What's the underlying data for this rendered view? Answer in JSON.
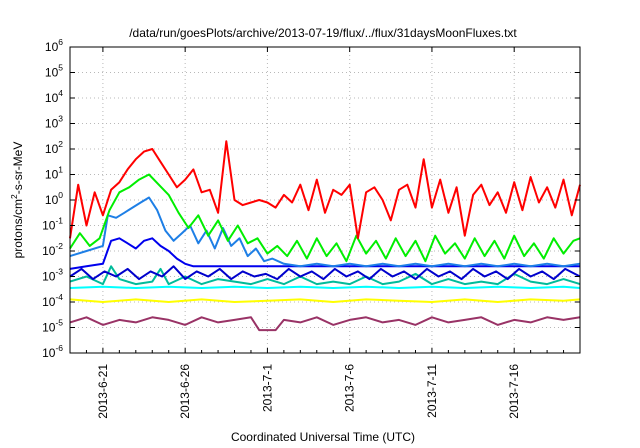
{
  "chart_data": {
    "type": "line",
    "title": "/data/run/goesPlots/archive/2013-07-19/flux/../flux/31daysMoonFluxes.txt",
    "xlabel": "Coordinated Universal Time (UTC)",
    "ylabel": {
      "base": "protons/cm",
      "sup": "2",
      "rest": "-s-sr-MeV"
    },
    "yscale": "log",
    "ylim": [
      -6,
      6
    ],
    "y_ticks": [
      {
        "base": "10",
        "exp": "-6",
        "v": -6
      },
      {
        "base": "10",
        "exp": "-5",
        "v": -5
      },
      {
        "base": "10",
        "exp": "-4",
        "v": -4
      },
      {
        "base": "10",
        "exp": "-3",
        "v": -3
      },
      {
        "base": "10",
        "exp": "-2",
        "v": -2
      },
      {
        "base": "10",
        "exp": "-1",
        "v": -1
      },
      {
        "base": "10",
        "exp": "0",
        "v": 0
      },
      {
        "base": "10",
        "exp": "1",
        "v": 1
      },
      {
        "base": "10",
        "exp": "2",
        "v": 2
      },
      {
        "base": "10",
        "exp": "3",
        "v": 3
      },
      {
        "base": "10",
        "exp": "4",
        "v": 4
      },
      {
        "base": "10",
        "exp": "5",
        "v": 5
      },
      {
        "base": "10",
        "exp": "6",
        "v": 6
      }
    ],
    "x_ticks": [
      "2013-6-21",
      "2013-6-26",
      "2013-7-1",
      "2013-7-6",
      "2013-7-11",
      "2013-7-16"
    ],
    "x_tick_days": [
      2,
      7,
      12,
      17,
      22,
      27
    ],
    "xlim_days": [
      0,
      31
    ],
    "grid": true,
    "series": [
      {
        "color": "#993366",
        "x": [
          0,
          1,
          2,
          3,
          4,
          5,
          6,
          7,
          8,
          9,
          10,
          11,
          11.5,
          12.5,
          13,
          14,
          15,
          16,
          17,
          18,
          19,
          20,
          21,
          22,
          23,
          24,
          25,
          26,
          27,
          28,
          29,
          30,
          31
        ],
        "y": [
          -4.8,
          -4.6,
          -4.9,
          -4.7,
          -4.8,
          -4.6,
          -4.7,
          -4.9,
          -4.6,
          -4.8,
          -4.7,
          -4.6,
          -5.1,
          -5.1,
          -4.7,
          -4.8,
          -4.6,
          -4.9,
          -4.7,
          -4.6,
          -4.8,
          -4.7,
          -4.9,
          -4.6,
          -4.8,
          -4.7,
          -4.6,
          -4.9,
          -4.7,
          -4.8,
          -4.6,
          -4.7,
          -4.6
        ]
      },
      {
        "color": "#ffff00",
        "x": [
          0,
          2,
          4,
          6,
          8,
          10,
          12,
          14,
          16,
          18,
          20,
          22,
          24,
          26,
          28,
          30,
          31
        ],
        "y": [
          -3.9,
          -4.0,
          -3.9,
          -4.0,
          -3.9,
          -4.0,
          -3.95,
          -3.9,
          -4.0,
          -3.9,
          -3.95,
          -4.0,
          -3.9,
          -4.0,
          -3.9,
          -3.95,
          -3.9
        ]
      },
      {
        "color": "#00ffff",
        "x": [
          0,
          2,
          4,
          6,
          8,
          10,
          12,
          14,
          16,
          18,
          20,
          22,
          24,
          26,
          28,
          30,
          31
        ],
        "y": [
          -3.45,
          -3.4,
          -3.45,
          -3.4,
          -3.45,
          -3.4,
          -3.45,
          -3.4,
          -3.45,
          -3.4,
          -3.45,
          -3.4,
          -3.45,
          -3.4,
          -3.45,
          -3.4,
          -3.45
        ]
      },
      {
        "color": "#00bb99",
        "x": [
          0,
          1,
          2,
          2.5,
          3,
          4,
          5,
          5.5,
          6,
          7,
          8,
          9,
          10,
          11,
          12,
          13,
          14,
          15,
          16,
          17,
          18,
          19,
          20,
          21,
          22,
          23,
          24,
          25,
          26,
          27,
          28,
          29,
          30,
          31
        ],
        "y": [
          -3.2,
          -3.0,
          -3.3,
          -2.6,
          -3.1,
          -3.3,
          -3.2,
          -2.7,
          -3.3,
          -3.0,
          -3.3,
          -3.1,
          -3.2,
          -3.3,
          -3.1,
          -3.3,
          -3.0,
          -3.3,
          -3.2,
          -3.3,
          -3.0,
          -3.3,
          -3.2,
          -2.9,
          -3.3,
          -3.1,
          -3.3,
          -3.2,
          -3.3,
          -2.9,
          -3.2,
          -3.3,
          -3.1,
          -3.3
        ]
      },
      {
        "color": "#0000cc",
        "x": [
          0,
          0.7,
          1.4,
          2.1,
          2.8,
          3.5,
          4.2,
          4.9,
          5.6,
          6.3,
          7,
          7.7,
          8.4,
          9.1,
          9.8,
          10.5,
          11.2,
          11.9,
          12.6,
          13.3,
          14,
          14.7,
          15.4,
          16.1,
          16.8,
          17.5,
          18.2,
          18.9,
          19.6,
          20.3,
          21,
          21.7,
          22.4,
          23.1,
          23.8,
          24.5,
          25.2,
          25.9,
          26.6,
          27.3,
          28,
          28.7,
          29.4,
          30.1,
          31
        ],
        "y": [
          -3.0,
          -2.7,
          -3.1,
          -2.8,
          -3.0,
          -2.7,
          -3.1,
          -2.8,
          -3.0,
          -2.6,
          -3.1,
          -2.8,
          -3.0,
          -2.7,
          -3.1,
          -2.8,
          -3.0,
          -2.9,
          -3.1,
          -2.7,
          -3.0,
          -2.8,
          -3.1,
          -2.7,
          -3.0,
          -2.8,
          -3.1,
          -2.7,
          -3.0,
          -2.8,
          -3.1,
          -2.7,
          -3.0,
          -2.8,
          -3.1,
          -2.7,
          -3.0,
          -2.8,
          -3.1,
          -2.7,
          -3.0,
          -2.8,
          -3.1,
          -2.7,
          -3.0
        ]
      },
      {
        "color": "#0000ee",
        "x": [
          0,
          1,
          2,
          2.5,
          3,
          3.5,
          4,
          4.5,
          5,
          5.5,
          6,
          6.5,
          7,
          7.5,
          8,
          9,
          10,
          11,
          12,
          13,
          14,
          15,
          16,
          17,
          18,
          19,
          20,
          21,
          22,
          23,
          24,
          25,
          26,
          27,
          28,
          29,
          30,
          31
        ],
        "y": [
          -2.7,
          -2.6,
          -2.5,
          -1.6,
          -1.5,
          -1.7,
          -1.9,
          -1.6,
          -1.5,
          -1.8,
          -2.0,
          -2.3,
          -2.5,
          -2.6,
          -2.6,
          -2.6,
          -2.6,
          -2.6,
          -2.6,
          -2.6,
          -2.6,
          -2.6,
          -2.6,
          -2.6,
          -2.6,
          -2.6,
          -2.6,
          -2.6,
          -2.6,
          -2.6,
          -2.6,
          -2.6,
          -2.6,
          -2.6,
          -2.6,
          -2.6,
          -2.6,
          -2.6
        ]
      },
      {
        "color": "#1e7fe6",
        "x": [
          0,
          1,
          2,
          2.3,
          2.8,
          3.3,
          3.8,
          4.3,
          4.8,
          5.3,
          5.8,
          6.3,
          6.8,
          7.3,
          7.8,
          8.3,
          8.8,
          9.3,
          9.8,
          10.3,
          10.8,
          11.3,
          11.8,
          12.3,
          13,
          14,
          15,
          16,
          17,
          18,
          19,
          20,
          21,
          22,
          23,
          24,
          25,
          26,
          27,
          28,
          29,
          30,
          31
        ],
        "y": [
          -2.2,
          -2.0,
          -1.8,
          -0.6,
          -0.7,
          -0.5,
          -0.3,
          -0.1,
          0.1,
          -0.4,
          -1.2,
          -1.6,
          -1.3,
          -1.0,
          -1.7,
          -1.2,
          -1.9,
          -1.1,
          -1.8,
          -1.5,
          -2.2,
          -1.9,
          -2.4,
          -2.3,
          -2.5,
          -2.6,
          -2.5,
          -2.6,
          -2.5,
          -2.6,
          -2.5,
          -2.6,
          -2.5,
          -2.6,
          -2.5,
          -2.6,
          -2.5,
          -2.6,
          -2.5,
          -2.6,
          -2.5,
          -2.6,
          -2.5
        ]
      },
      {
        "color": "#00ee00",
        "x": [
          0,
          0.6,
          1.2,
          1.8,
          2.4,
          3,
          3.6,
          4.2,
          4.8,
          5.4,
          6,
          6.6,
          7.2,
          7.8,
          8.4,
          9,
          9.6,
          10.2,
          10.8,
          11.4,
          12,
          12.6,
          13.2,
          13.8,
          14.4,
          15,
          15.6,
          16.2,
          16.8,
          17.4,
          18,
          18.6,
          19.2,
          19.8,
          20.4,
          21,
          21.6,
          22.2,
          22.8,
          23.4,
          24,
          24.6,
          25.2,
          25.8,
          26.4,
          27,
          27.6,
          28.2,
          28.8,
          29.4,
          30,
          30.6,
          31
        ],
        "y": [
          -1.9,
          -1.3,
          -1.8,
          -1.5,
          -0.4,
          0.3,
          0.5,
          0.8,
          1.0,
          0.6,
          0.2,
          -0.5,
          -1.1,
          -0.6,
          -1.4,
          -0.8,
          -1.6,
          -1.0,
          -1.7,
          -1.5,
          -2.1,
          -1.8,
          -2.2,
          -1.6,
          -2.3,
          -1.5,
          -2.2,
          -1.7,
          -2.4,
          -1.4,
          -2.1,
          -1.6,
          -2.3,
          -1.5,
          -2.2,
          -1.6,
          -2.4,
          -1.4,
          -2.1,
          -1.7,
          -2.3,
          -1.5,
          -2.2,
          -1.6,
          -2.3,
          -1.4,
          -2.2,
          -1.7,
          -2.3,
          -1.5,
          -2.1,
          -1.6,
          -1.5
        ]
      },
      {
        "color": "#ff0000",
        "x": [
          0,
          0.5,
          1,
          1.5,
          2,
          2.5,
          3,
          3.5,
          4,
          4.5,
          5,
          5.5,
          6,
          6.5,
          7,
          7.5,
          8,
          8.5,
          9,
          9.5,
          10,
          10.5,
          11,
          11.5,
          12,
          12.5,
          13,
          13.5,
          14,
          14.5,
          15,
          15.5,
          16,
          16.5,
          17,
          17.5,
          18,
          18.5,
          19,
          19.5,
          20,
          20.5,
          21,
          21.5,
          22,
          22.5,
          23,
          23.5,
          24,
          24.5,
          25,
          25.5,
          26,
          26.5,
          27,
          27.5,
          28,
          28.5,
          29,
          29.5,
          30,
          30.5,
          31
        ],
        "y": [
          -1.5,
          0.6,
          -1.0,
          0.3,
          -0.6,
          0.4,
          0.7,
          1.2,
          1.6,
          1.9,
          2.0,
          1.5,
          1.0,
          0.5,
          0.8,
          1.2,
          0.3,
          0.4,
          -0.5,
          2.3,
          0.0,
          -0.2,
          -0.1,
          0.0,
          -0.1,
          -0.3,
          0.2,
          -0.1,
          0.6,
          -0.4,
          0.8,
          -0.5,
          0.4,
          0.2,
          0.6,
          -1.5,
          0.3,
          0.5,
          0.0,
          -0.8,
          0.4,
          0.6,
          -0.3,
          1.6,
          -0.3,
          0.8,
          -0.5,
          0.5,
          -1.4,
          0.2,
          0.6,
          -0.2,
          0.3,
          -0.5,
          0.7,
          -0.4,
          0.9,
          -0.1,
          0.5,
          -0.3,
          0.8,
          -0.6,
          0.6
        ]
      }
    ]
  }
}
